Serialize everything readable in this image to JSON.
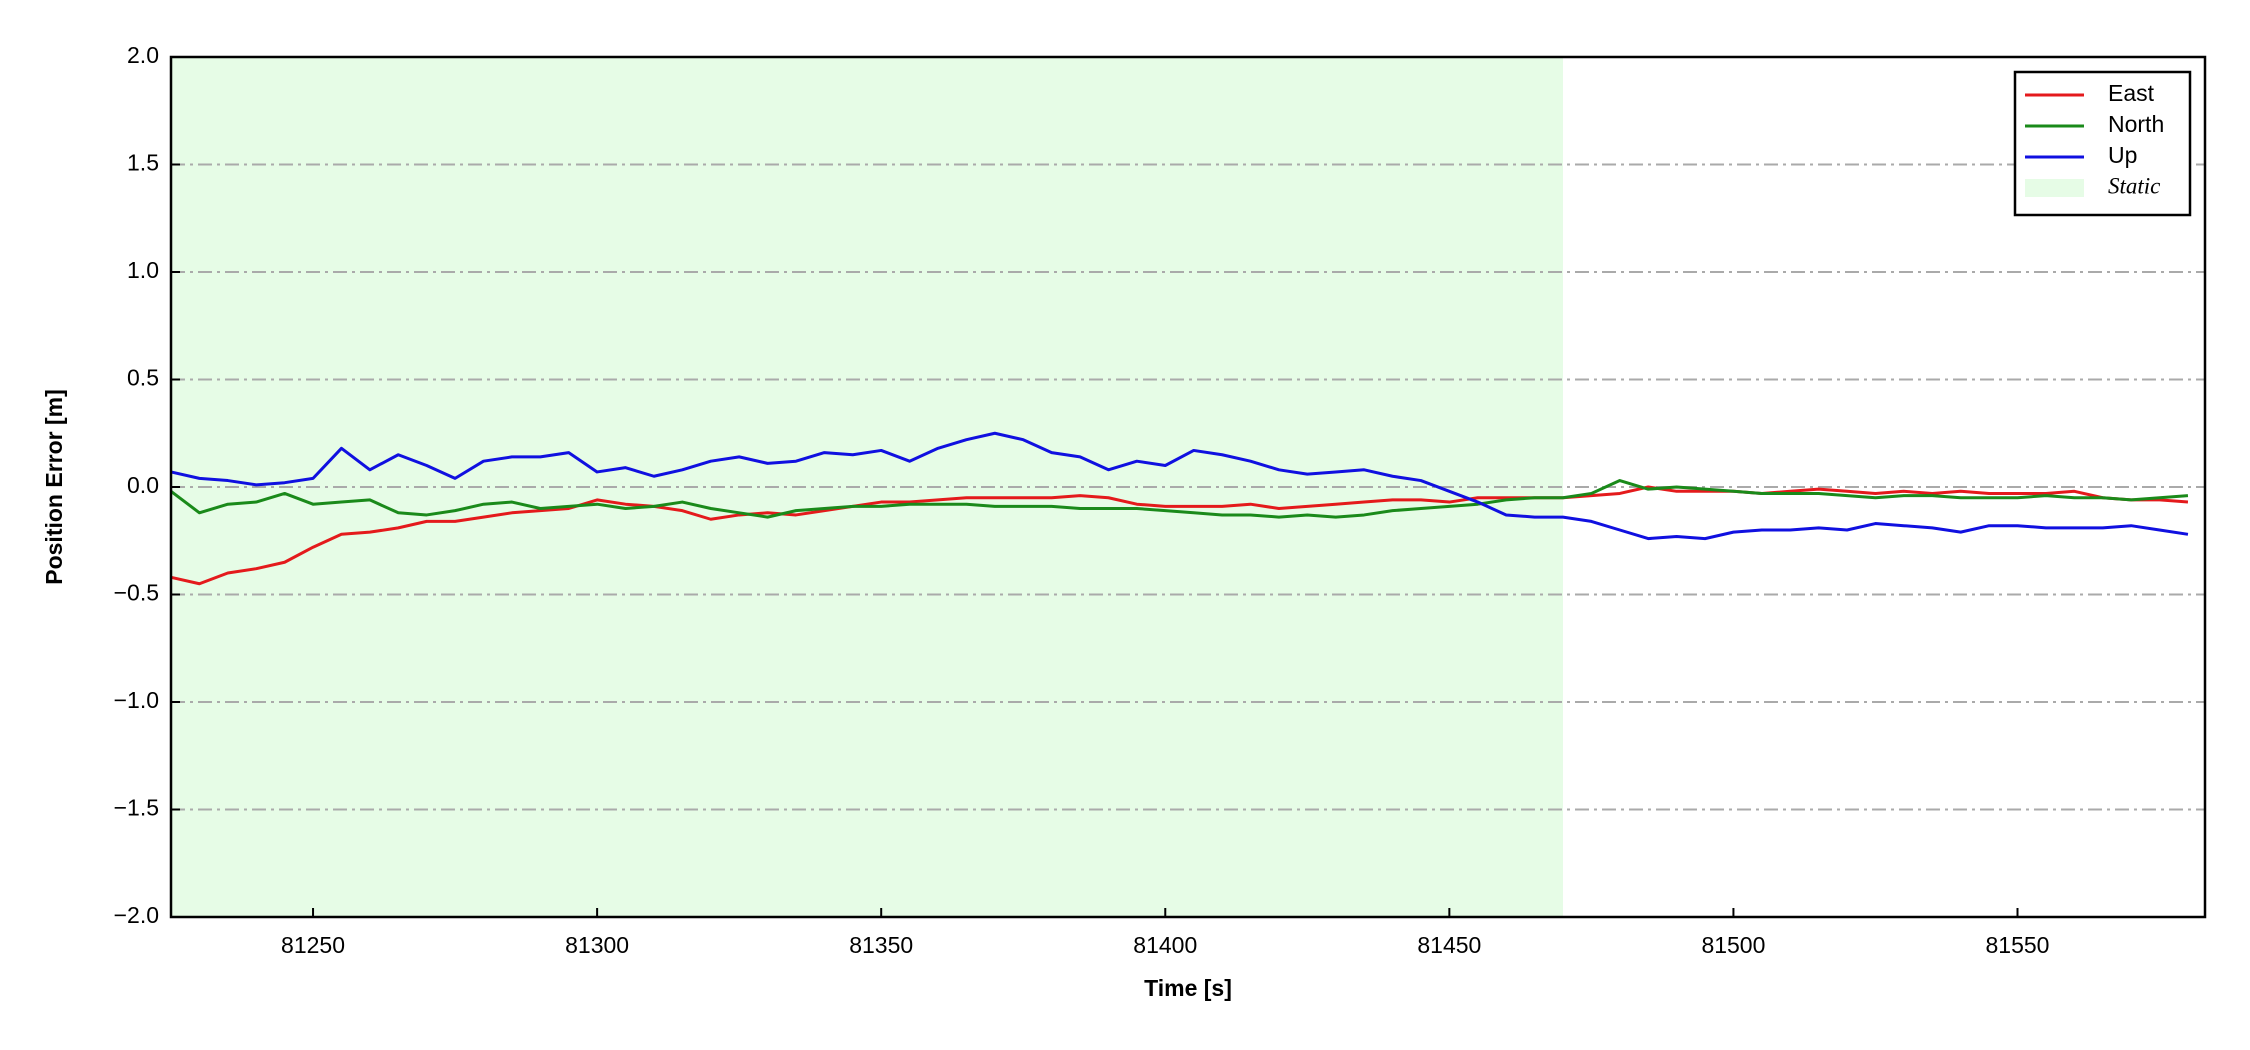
{
  "chart_data": {
    "type": "line",
    "x_label": "Time [s]",
    "y_label": "Position Error [m]",
    "x": [
      81225,
      81230,
      81235,
      81240,
      81245,
      81250,
      81255,
      81260,
      81265,
      81270,
      81275,
      81280,
      81285,
      81290,
      81295,
      81300,
      81305,
      81310,
      81315,
      81320,
      81325,
      81330,
      81335,
      81340,
      81345,
      81350,
      81355,
      81360,
      81365,
      81370,
      81375,
      81380,
      81385,
      81390,
      81395,
      81400,
      81405,
      81410,
      81415,
      81420,
      81425,
      81430,
      81435,
      81440,
      81445,
      81450,
      81455,
      81460,
      81465,
      81470,
      81475,
      81480,
      81485,
      81490,
      81495,
      81500,
      81505,
      81510,
      81515,
      81520,
      81525,
      81530,
      81535,
      81540,
      81545,
      81550,
      81555,
      81560,
      81565,
      81570,
      81575,
      81580
    ],
    "series": [
      {
        "name": "East",
        "color": "#e41a1c",
        "values": [
          -0.42,
          -0.45,
          -0.4,
          -0.38,
          -0.35,
          -0.28,
          -0.22,
          -0.21,
          -0.19,
          -0.16,
          -0.16,
          -0.14,
          -0.12,
          -0.11,
          -0.1,
          -0.06,
          -0.08,
          -0.09,
          -0.11,
          -0.15,
          -0.13,
          -0.12,
          -0.13,
          -0.11,
          -0.09,
          -0.07,
          -0.07,
          -0.06,
          -0.05,
          -0.05,
          -0.05,
          -0.05,
          -0.04,
          -0.05,
          -0.08,
          -0.09,
          -0.09,
          -0.09,
          -0.08,
          -0.1,
          -0.09,
          -0.08,
          -0.07,
          -0.06,
          -0.06,
          -0.07,
          -0.05,
          -0.05,
          -0.05,
          -0.05,
          -0.04,
          -0.03,
          0.0,
          -0.02,
          -0.02,
          -0.02,
          -0.03,
          -0.02,
          -0.01,
          -0.02,
          -0.03,
          -0.02,
          -0.03,
          -0.02,
          -0.03,
          -0.03,
          -0.03,
          -0.02,
          -0.05,
          -0.06,
          -0.06,
          -0.07
        ]
      },
      {
        "name": "North",
        "color": "#1a8a1a",
        "values": [
          -0.02,
          -0.12,
          -0.08,
          -0.07,
          -0.03,
          -0.08,
          -0.07,
          -0.06,
          -0.12,
          -0.13,
          -0.11,
          -0.08,
          -0.07,
          -0.1,
          -0.09,
          -0.08,
          -0.1,
          -0.09,
          -0.07,
          -0.1,
          -0.12,
          -0.14,
          -0.11,
          -0.1,
          -0.09,
          -0.09,
          -0.08,
          -0.08,
          -0.08,
          -0.09,
          -0.09,
          -0.09,
          -0.1,
          -0.1,
          -0.1,
          -0.11,
          -0.12,
          -0.13,
          -0.13,
          -0.14,
          -0.13,
          -0.14,
          -0.13,
          -0.11,
          -0.1,
          -0.09,
          -0.08,
          -0.06,
          -0.05,
          -0.05,
          -0.03,
          0.03,
          -0.01,
          0.0,
          -0.01,
          -0.02,
          -0.03,
          -0.03,
          -0.03,
          -0.04,
          -0.05,
          -0.04,
          -0.04,
          -0.05,
          -0.05,
          -0.05,
          -0.04,
          -0.05,
          -0.05,
          -0.06,
          -0.05,
          -0.04
        ]
      },
      {
        "name": "Up",
        "color": "#1010e0",
        "values": [
          0.07,
          0.04,
          0.03,
          0.01,
          0.02,
          0.04,
          0.18,
          0.08,
          0.15,
          0.1,
          0.04,
          0.12,
          0.14,
          0.14,
          0.16,
          0.07,
          0.09,
          0.05,
          0.08,
          0.12,
          0.14,
          0.11,
          0.12,
          0.16,
          0.15,
          0.17,
          0.12,
          0.18,
          0.22,
          0.25,
          0.22,
          0.16,
          0.14,
          0.08,
          0.12,
          0.1,
          0.17,
          0.15,
          0.12,
          0.08,
          0.06,
          0.07,
          0.08,
          0.05,
          0.03,
          -0.02,
          -0.07,
          -0.13,
          -0.14,
          -0.14,
          -0.16,
          -0.2,
          -0.24,
          -0.23,
          -0.24,
          -0.21,
          -0.2,
          -0.2,
          -0.19,
          -0.2,
          -0.17,
          -0.18,
          -0.19,
          -0.21,
          -0.18,
          -0.18,
          -0.19,
          -0.19,
          -0.19,
          -0.18,
          -0.2,
          -0.22
        ]
      }
    ],
    "shaded_region": {
      "name": "Static",
      "color": "#e6fce6",
      "span": [
        81225,
        81470
      ]
    },
    "xlim": [
      81225,
      81583
    ],
    "ylim": [
      -2,
      2
    ],
    "xticks": [
      81250,
      81300,
      81350,
      81400,
      81450,
      81500,
      81550
    ],
    "yticks": [
      {
        "value": -2,
        "label": "−2.0"
      },
      {
        "value": -1.5,
        "label": "−1.5"
      },
      {
        "value": -1,
        "label": "−1.0"
      },
      {
        "value": -0.5,
        "label": "−0.5"
      },
      {
        "value": 0,
        "label": "0.0"
      },
      {
        "value": 0.5,
        "label": "0.5"
      },
      {
        "value": 1,
        "label": "1.0"
      },
      {
        "value": 1.5,
        "label": "1.5"
      },
      {
        "value": 2,
        "label": "2.0"
      }
    ],
    "grid": true,
    "legend": "upper right"
  }
}
